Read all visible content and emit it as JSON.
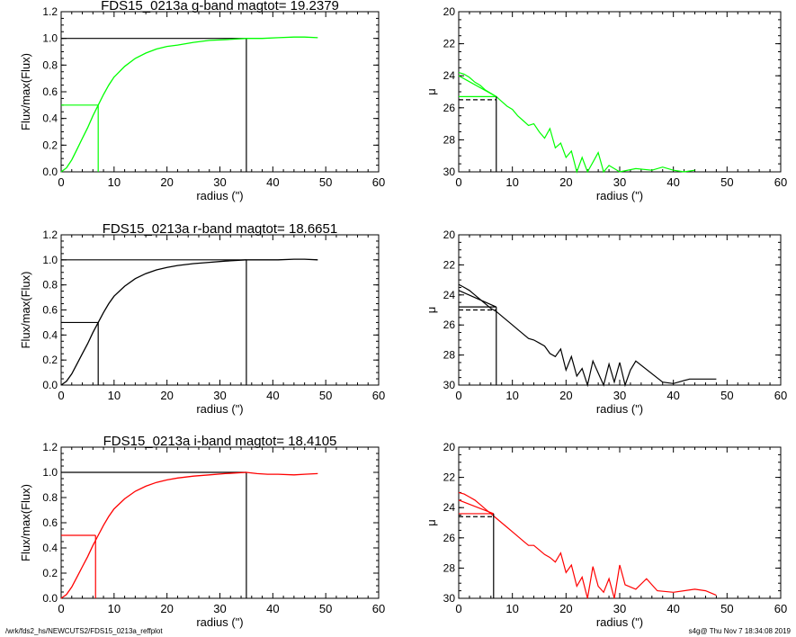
{
  "footer": {
    "left": "/wrk/fds2_hs/NEWCUTS2/FDS15_0213a_reffplot",
    "right": "s4g@  Thu Nov  7 18:34:08 2019"
  },
  "chart_data": [
    {
      "type": "line",
      "panel": "growth-curve",
      "band": "g",
      "title": "FDS15_0213a g-band  magtot=     19.2379",
      "color": "#00ff00",
      "xlabel": "radius (\")",
      "ylabel": "Flux/max(Flux)",
      "xlim": [
        0,
        60
      ],
      "ylim": [
        0,
        1.2
      ],
      "xticks": [
        0,
        10,
        20,
        30,
        40,
        50,
        60
      ],
      "yticks": [
        0.0,
        0.2,
        0.4,
        0.6,
        0.8,
        1.0,
        1.2
      ],
      "x": [
        0,
        1,
        2,
        3,
        4,
        5,
        6,
        7,
        8,
        9,
        10,
        12,
        14,
        16,
        18,
        20,
        22,
        25,
        28,
        31,
        35,
        38,
        41,
        44,
        46,
        48.5
      ],
      "y": [
        0,
        0.03,
        0.09,
        0.17,
        0.25,
        0.33,
        0.42,
        0.5,
        0.58,
        0.65,
        0.71,
        0.79,
        0.85,
        0.89,
        0.92,
        0.94,
        0.95,
        0.97,
        0.985,
        0.99,
        1.0,
        1.0,
        1.005,
        1.01,
        1.01,
        1.005
      ],
      "half_light": {
        "radius": 7,
        "value": 0.5
      },
      "total": {
        "radius": 35,
        "value": 1.0
      }
    },
    {
      "type": "line",
      "panel": "surface-brightness",
      "band": "g",
      "color": "#00ff00",
      "xlabel": "radius (\")",
      "ylabel": "μ",
      "xlim": [
        0,
        60
      ],
      "ylim": [
        30,
        20
      ],
      "xticks": [
        0,
        10,
        20,
        30,
        40,
        50,
        60
      ],
      "yticks": [
        20,
        22,
        24,
        26,
        28,
        30
      ],
      "x": [
        0,
        1,
        2,
        3,
        4,
        5,
        6,
        7,
        8,
        9,
        10,
        11,
        12,
        13,
        14,
        15,
        16,
        17,
        18,
        19,
        20,
        21,
        22,
        23,
        24,
        25,
        26,
        27,
        28,
        30,
        33,
        36,
        38,
        40,
        42,
        44
      ],
      "y": [
        23.8,
        23.9,
        24.1,
        24.4,
        24.6,
        24.9,
        25.1,
        25.3,
        25.6,
        25.9,
        26.1,
        26.5,
        26.8,
        27.1,
        27.0,
        27.5,
        27.9,
        27.3,
        28.5,
        28.2,
        29.1,
        28.7,
        30.0,
        29.1,
        30.0,
        29.4,
        28.8,
        30.0,
        29.6,
        30.0,
        29.8,
        29.9,
        29.7,
        29.9,
        30.0,
        29.9
      ],
      "fit_line": {
        "x": [
          0,
          7
        ],
        "y": [
          24.0,
          25.3
        ]
      },
      "mu_eff": 25.3,
      "mu_eff_mean": 25.5,
      "r_eff": 7
    },
    {
      "type": "line",
      "panel": "growth-curve",
      "band": "r",
      "title": "FDS15_0213a r-band  magtot=     18.6651",
      "color": "#000000",
      "xlabel": "radius (\")",
      "ylabel": "Flux/max(Flux)",
      "xlim": [
        0,
        60
      ],
      "ylim": [
        0,
        1.2
      ],
      "xticks": [
        0,
        10,
        20,
        30,
        40,
        50,
        60
      ],
      "yticks": [
        0.0,
        0.2,
        0.4,
        0.6,
        0.8,
        1.0,
        1.2
      ],
      "x": [
        0,
        1,
        2,
        3,
        4,
        5,
        6,
        7,
        8,
        9,
        10,
        12,
        14,
        16,
        18,
        20,
        22,
        25,
        28,
        31,
        35,
        38,
        41,
        44,
        46,
        48.5
      ],
      "y": [
        0,
        0.03,
        0.09,
        0.17,
        0.25,
        0.33,
        0.42,
        0.5,
        0.58,
        0.65,
        0.71,
        0.79,
        0.85,
        0.89,
        0.92,
        0.94,
        0.955,
        0.97,
        0.98,
        0.99,
        1.0,
        1.0,
        1.0,
        1.005,
        1.005,
        1.0
      ],
      "half_light": {
        "radius": 7,
        "value": 0.5
      },
      "total": {
        "radius": 35,
        "value": 1.0
      }
    },
    {
      "type": "line",
      "panel": "surface-brightness",
      "band": "r",
      "color": "#000000",
      "xlabel": "radius (\")",
      "ylabel": "μ",
      "xlim": [
        0,
        60
      ],
      "ylim": [
        30,
        20
      ],
      "xticks": [
        0,
        10,
        20,
        30,
        40,
        50,
        60
      ],
      "yticks": [
        20,
        22,
        24,
        26,
        28,
        30
      ],
      "x": [
        0,
        1,
        2,
        3,
        4,
        5,
        6,
        7,
        8,
        9,
        10,
        11,
        12,
        13,
        14,
        15,
        16,
        17,
        18,
        19,
        20,
        21,
        22,
        23,
        24,
        25,
        26,
        27,
        28,
        29,
        30,
        31,
        32,
        33,
        38,
        40,
        43,
        48
      ],
      "y": [
        23.3,
        23.5,
        23.7,
        24.0,
        24.3,
        24.6,
        24.9,
        25.1,
        25.4,
        25.7,
        26.0,
        26.3,
        26.6,
        26.9,
        27.0,
        27.2,
        27.4,
        27.9,
        28.1,
        27.6,
        29.0,
        28.1,
        29.4,
        28.9,
        30.0,
        28.4,
        29.2,
        30.0,
        28.6,
        29.8,
        28.5,
        30.0,
        29.0,
        28.4,
        29.8,
        29.9,
        29.6,
        29.6
      ],
      "fit_line": {
        "x": [
          0,
          7
        ],
        "y": [
          23.7,
          24.8
        ]
      },
      "mu_eff": 24.8,
      "mu_eff_mean": 25.0,
      "r_eff": 7
    },
    {
      "type": "line",
      "panel": "growth-curve",
      "band": "i",
      "title": "FDS15_0213a i-band  magtot=     18.4105",
      "color": "#ff0000",
      "xlabel": "radius (\")",
      "ylabel": "Flux/max(Flux)",
      "xlim": [
        0,
        60
      ],
      "ylim": [
        0,
        1.2
      ],
      "xticks": [
        0,
        10,
        20,
        30,
        40,
        50,
        60
      ],
      "yticks": [
        0.0,
        0.2,
        0.4,
        0.6,
        0.8,
        1.0,
        1.2
      ],
      "x": [
        0,
        1,
        2,
        3,
        4,
        5,
        6,
        7,
        8,
        9,
        10,
        12,
        14,
        16,
        18,
        20,
        22,
        25,
        28,
        31,
        35,
        37,
        39,
        41,
        44,
        46,
        48.5
      ],
      "y": [
        0,
        0.03,
        0.09,
        0.17,
        0.25,
        0.33,
        0.42,
        0.5,
        0.58,
        0.65,
        0.71,
        0.79,
        0.85,
        0.89,
        0.92,
        0.94,
        0.955,
        0.97,
        0.98,
        0.99,
        1.0,
        0.99,
        0.985,
        0.985,
        0.98,
        0.985,
        0.99
      ],
      "half_light": {
        "radius": 6.5,
        "value": 0.5
      },
      "total": {
        "radius": 35,
        "value": 1.0
      }
    },
    {
      "type": "line",
      "panel": "surface-brightness",
      "band": "i",
      "color": "#ff0000",
      "xlabel": "radius (\")",
      "ylabel": "μ",
      "xlim": [
        0,
        60
      ],
      "ylim": [
        30,
        20
      ],
      "xticks": [
        0,
        10,
        20,
        30,
        40,
        50,
        60
      ],
      "yticks": [
        20,
        22,
        24,
        26,
        28,
        30
      ],
      "x": [
        0,
        1,
        2,
        3,
        4,
        5,
        6,
        7,
        8,
        9,
        10,
        11,
        12,
        13,
        14,
        15,
        16,
        17,
        18,
        19,
        20,
        21,
        22,
        23,
        24,
        25,
        26,
        27,
        28,
        29,
        30,
        31,
        33,
        35,
        37,
        40,
        44,
        46,
        48
      ],
      "y": [
        23.0,
        23.1,
        23.3,
        23.5,
        23.8,
        24.1,
        24.4,
        24.7,
        25.0,
        25.3,
        25.6,
        25.9,
        26.2,
        26.5,
        26.5,
        26.8,
        27.1,
        27.3,
        27.6,
        27.0,
        28.3,
        27.8,
        29.2,
        28.6,
        30.0,
        27.9,
        29.2,
        29.6,
        28.7,
        30.0,
        27.8,
        29.1,
        29.4,
        28.7,
        29.5,
        29.6,
        29.4,
        29.5,
        29.8
      ],
      "fit_line": {
        "x": [
          0,
          6.5
        ],
        "y": [
          23.5,
          24.4
        ]
      },
      "mu_eff": 24.4,
      "mu_eff_mean": 24.6,
      "r_eff": 6.5
    }
  ]
}
